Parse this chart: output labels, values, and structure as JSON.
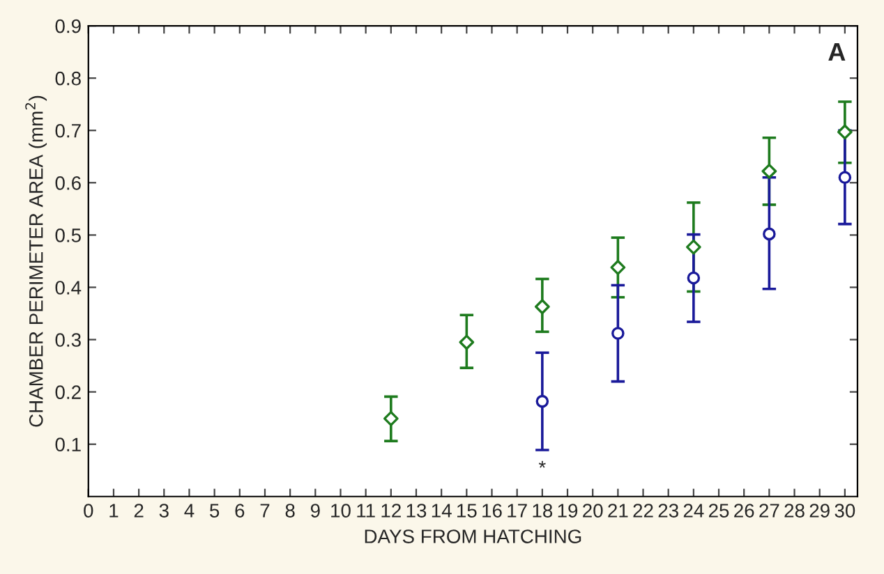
{
  "chart_data": {
    "type": "scatter",
    "xlabel": "DAYS FROM HATCHING",
    "ylabel": "CHAMBER PERIMETER AREA (mm$^{2}$)",
    "xlim": [
      0,
      30.5
    ],
    "xticks": [
      0,
      1,
      2,
      3,
      4,
      5,
      6,
      7,
      8,
      9,
      10,
      11,
      12,
      13,
      14,
      15,
      16,
      17,
      18,
      19,
      20,
      21,
      22,
      23,
      24,
      25,
      26,
      27,
      28,
      29,
      30
    ],
    "ylim": [
      0,
      0.9
    ],
    "yticks": [
      0.1,
      0.2,
      0.3,
      0.4,
      0.5,
      0.6,
      0.7,
      0.8,
      0.9
    ],
    "grid": false,
    "series": [
      {
        "color": "#1e7b1e",
        "marker": "diamond",
        "x": [
          12,
          15,
          18,
          21,
          24,
          27,
          30
        ],
        "values": [
          0.149,
          0.295,
          0.363,
          0.438,
          0.477,
          0.622,
          0.697
        ],
        "errors": [
          [
            0.106,
            0.191
          ],
          [
            0.246,
            0.347
          ],
          [
            0.315,
            0.416
          ],
          [
            0.381,
            0.495
          ],
          [
            0.392,
            0.562
          ],
          [
            0.558,
            0.686
          ],
          [
            0.638,
            0.755
          ]
        ]
      },
      {
        "color": "#1a1a9a",
        "marker": "circle",
        "x": [
          18,
          21,
          24,
          27,
          30
        ],
        "values": [
          0.182,
          0.312,
          0.418,
          0.502,
          0.61
        ],
        "errors": [
          [
            0.089,
            0.275
          ],
          [
            0.22,
            0.404
          ],
          [
            0.334,
            0.501
          ],
          [
            0.397,
            0.61
          ],
          [
            0.521,
            0.7
          ]
        ]
      }
    ],
    "annotations": [
      "A",
      "*"
    ]
  }
}
